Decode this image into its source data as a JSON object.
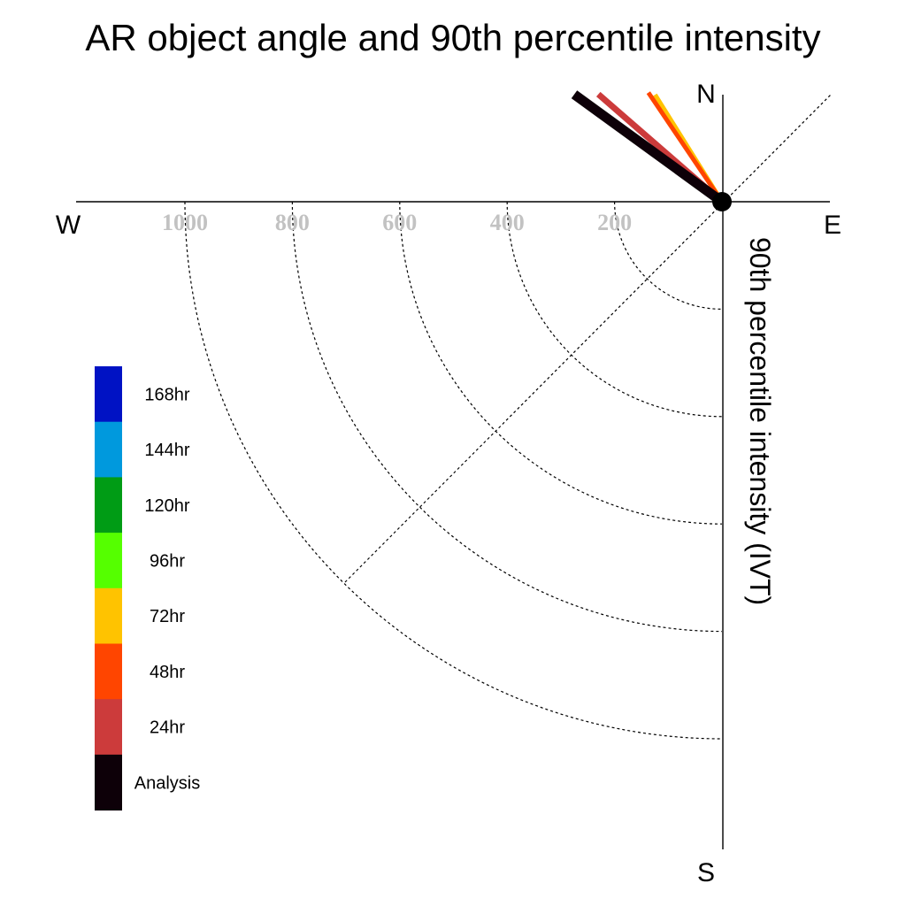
{
  "chart_data": {
    "type": "polar-vector",
    "title": "AR object angle and 90th percentile intensity",
    "ylabel": "90th percentile intensity (IVT)",
    "compass": {
      "north": "N",
      "south": "S",
      "east": "E",
      "west": "W"
    },
    "radial_ticks": [
      200,
      400,
      600,
      1000,
      800
    ],
    "radial_ticks_order": [
      1000,
      800,
      600,
      400,
      200
    ],
    "r_max": 1180,
    "grid": true,
    "legend_position": "left",
    "legend": [
      {
        "label": "168hr",
        "color": "#0012c4"
      },
      {
        "label": "144hr",
        "color": "#0099dd"
      },
      {
        "label": "120hr",
        "color": "#009c15"
      },
      {
        "label": "96hr",
        "color": "#55ff00"
      },
      {
        "label": "72hr",
        "color": "#ffc300"
      },
      {
        "label": "48hr",
        "color": "#ff4500"
      },
      {
        "label": "24hr",
        "color": "#cc3b3b"
      },
      {
        "label": "Analysis",
        "color": "#0d0008"
      }
    ],
    "series": [
      {
        "name": "72hr",
        "angle_deg": 328,
        "intensity": 235,
        "color": "#ffc300"
      },
      {
        "name": "48hr",
        "angle_deg": 326,
        "intensity": 245,
        "color": "#ff4500"
      },
      {
        "name": "24hr",
        "angle_deg": 311,
        "intensity": 305,
        "color": "#cc3b3b"
      },
      {
        "name": "Analysis",
        "angle_deg": 306,
        "intensity": 340,
        "color": "#0d0008"
      }
    ]
  }
}
